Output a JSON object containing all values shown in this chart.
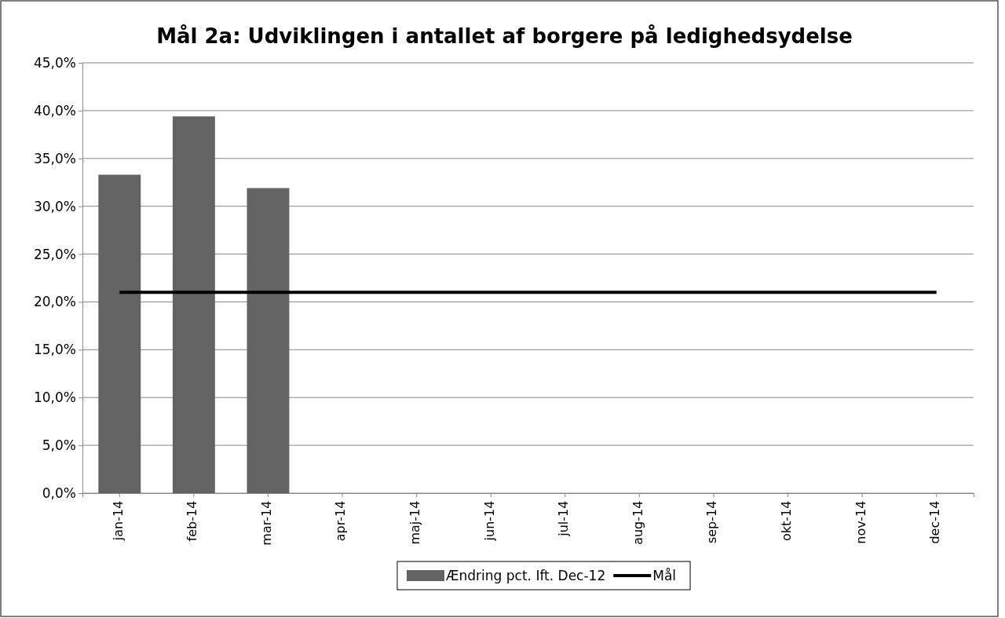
{
  "chart_data": {
    "type": "bar",
    "title": "Mål 2a: Udviklingen i antallet af borgere på ledighedsydelse",
    "categories": [
      "jan-14",
      "feb-14",
      "mar-14",
      "apr-14",
      "maj-14",
      "jun-14",
      "jul-14",
      "aug-14",
      "sep-14",
      "okt-14",
      "nov-14",
      "dec-14"
    ],
    "series": [
      {
        "name": "Ændring pct. Ift. Dec-12",
        "color": "#636363",
        "values": [
          33.3,
          39.4,
          31.9,
          null,
          null,
          null,
          null,
          null,
          null,
          null,
          null,
          null
        ]
      },
      {
        "name": "Mål",
        "type": "line",
        "color": "#000000",
        "values": [
          21,
          21,
          21,
          21,
          21,
          21,
          21,
          21,
          21,
          21,
          21,
          21
        ]
      }
    ],
    "ylim": [
      0,
      45
    ],
    "yticks": [
      {
        "value": 0,
        "label": "0,0%"
      },
      {
        "value": 5,
        "label": "5,0%"
      },
      {
        "value": 10,
        "label": "10,0%"
      },
      {
        "value": 15,
        "label": "15,0%"
      },
      {
        "value": 20,
        "label": "20,0%"
      },
      {
        "value": 25,
        "label": "25,0%"
      },
      {
        "value": 30,
        "label": "30,0%"
      },
      {
        "value": 35,
        "label": "35,0%"
      },
      {
        "value": 40,
        "label": "40,0%"
      },
      {
        "value": 45,
        "label": "45,0%"
      }
    ],
    "grid": "y",
    "legend": "bottom",
    "marker": "none",
    "line_style": "solid"
  }
}
